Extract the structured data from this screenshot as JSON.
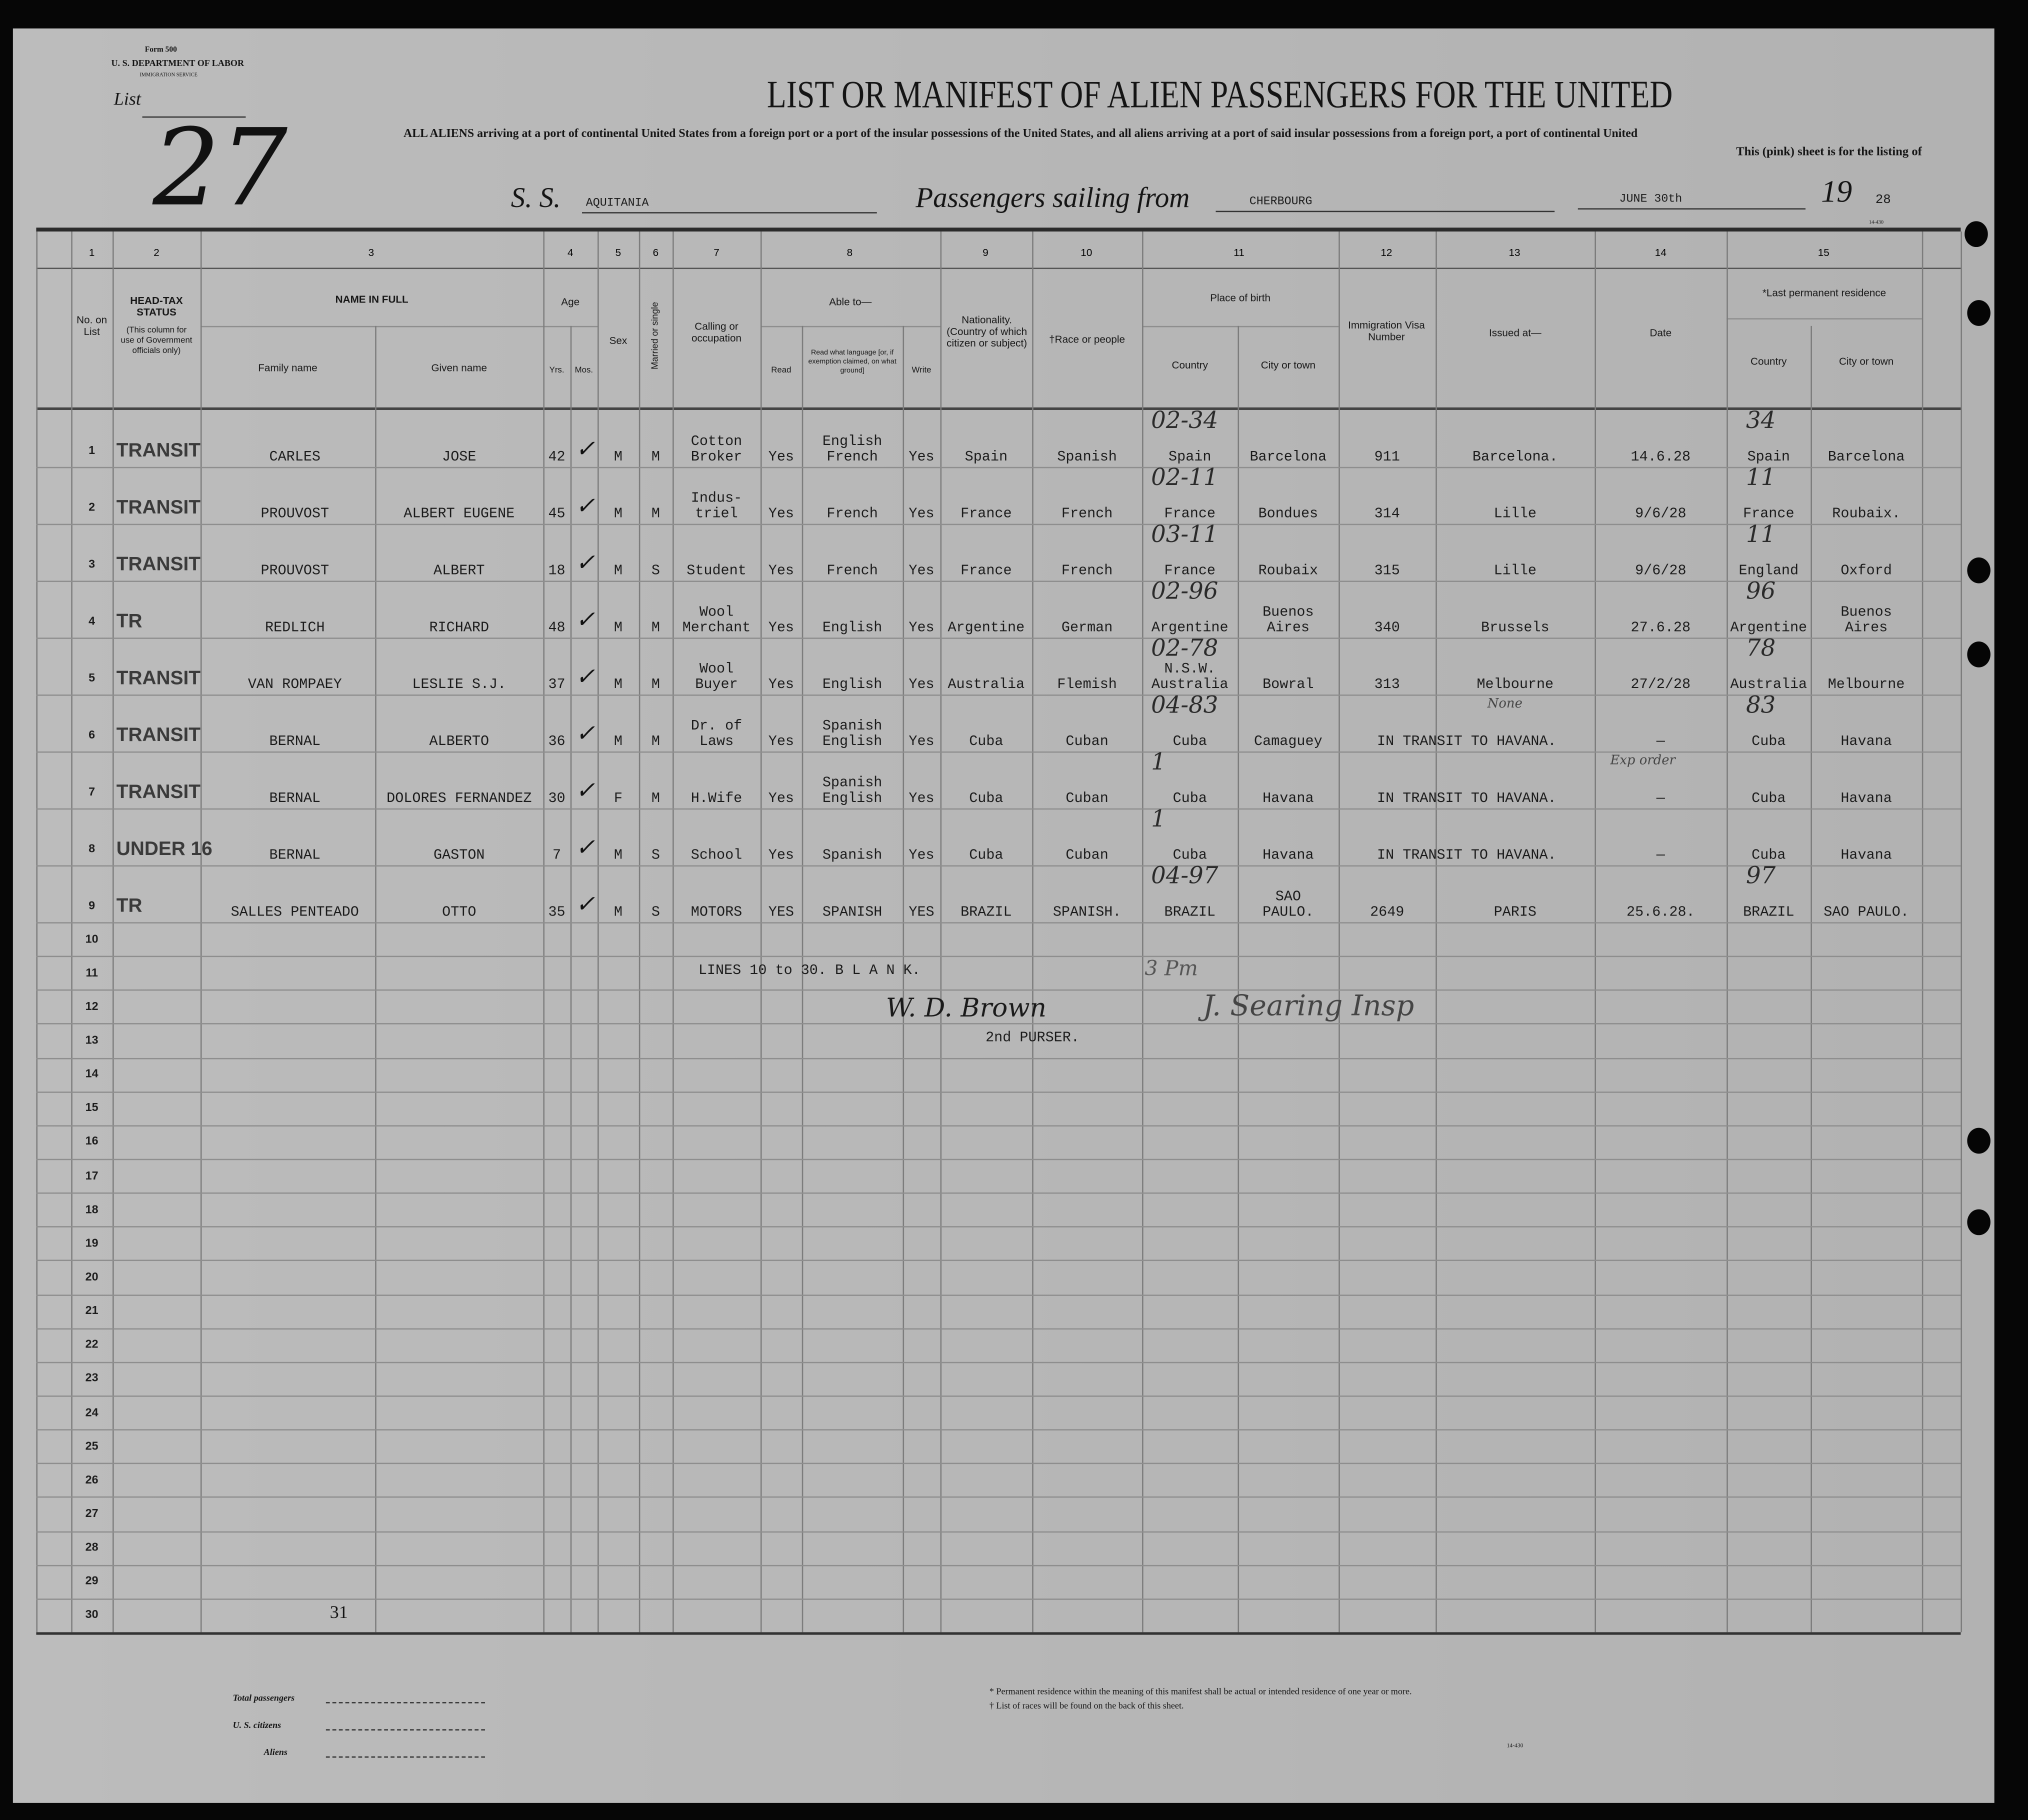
{
  "form": {
    "form_no": "Form 500",
    "department": "U. S. DEPARTMENT OF LABOR",
    "service": "IMMIGRATION SERVICE",
    "list_label": "List",
    "list_number": "27",
    "title": "LIST OR MANIFEST OF ALIEN PASSENGERS FOR THE UNITED",
    "subtitle": "ALL ALIENS arriving at a port of continental United States from a foreign port or a port of the insular possessions of the United States, and all aliens arriving at a port of said insular possessions from a foreign port, a port of continental United",
    "subtitle2": "This (pink) sheet is for the listing of",
    "ss_label": "S. S.",
    "ship": "AQUITANIA",
    "sailing_label": "Passengers sailing from",
    "port": "CHERBOURG",
    "date": "JUNE 30th",
    "year_prefix": "19",
    "year": "28",
    "form_code": "14-430"
  },
  "columns": {
    "numbers": [
      "1",
      "2",
      "3",
      "4",
      "5",
      "6",
      "7",
      "8",
      "9",
      "10",
      "11",
      "12",
      "13",
      "14",
      "15"
    ],
    "no_on_list": "No. on List",
    "head_tax": "HEAD-TAX STATUS",
    "head_tax_note": "(This column for use of Government officials only)",
    "name_in_full": "NAME IN FULL",
    "family_name": "Family name",
    "given_name": "Given name",
    "age": "Age",
    "yrs": "Yrs.",
    "mos": "Mos.",
    "sex": "Sex",
    "married": "Married or single",
    "calling": "Calling or occupation",
    "able_to": "Able to—",
    "read": "Read",
    "read_language": "Read what language [or, if exemption claimed, on what ground]",
    "write": "Write",
    "nationality": "Nationality. (Country of which citizen or subject)",
    "race": "†Race or people",
    "place_of_birth": "Place of birth",
    "country": "Country",
    "city": "City or town",
    "visa": "Immigration Visa Number",
    "issued_at": "Issued at—",
    "date": "Date",
    "last_residence": "*Last permanent residence",
    "res_country": "Country",
    "res_city": "City or town"
  },
  "rows": [
    {
      "no": "1",
      "tax": "TRANSIT",
      "family": "CARLES",
      "given": "JOSE",
      "yrs": "42",
      "sex": "M",
      "ms": "M",
      "calling": "Cotton\nBroker",
      "read": "Yes",
      "lang": "English\nFrench",
      "write": "Yes",
      "nat": "Spain",
      "race": "Spanish",
      "bcountry": "Spain",
      "bcity": "Barcelona",
      "visa": "911",
      "issued": "Barcelona.",
      "vdate": "14.6.28",
      "rcountry": "Spain",
      "rcity": "Barcelona",
      "hand_birth": "02-34",
      "hand_res": "34"
    },
    {
      "no": "2",
      "tax": "TRANSIT",
      "family": "PROUVOST",
      "given": "ALBERT EUGENE",
      "yrs": "45",
      "sex": "M",
      "ms": "M",
      "calling": "Indus-\ntriel",
      "read": "Yes",
      "lang": "French",
      "write": "Yes",
      "nat": "France",
      "race": "French",
      "bcountry": "France",
      "bcity": "Bondues",
      "visa": "314",
      "issued": "Lille",
      "vdate": "9/6/28",
      "rcountry": "France",
      "rcity": "Roubaix.",
      "hand_birth": "02-11",
      "hand_res": "11"
    },
    {
      "no": "3",
      "tax": "TRANSIT",
      "family": "PROUVOST",
      "given": "ALBERT",
      "yrs": "18",
      "sex": "M",
      "ms": "S",
      "calling": "Student",
      "read": "Yes",
      "lang": "French",
      "write": "Yes",
      "nat": "France",
      "race": "French",
      "bcountry": "France",
      "bcity": "Roubaix",
      "visa": "315",
      "issued": "Lille",
      "vdate": "9/6/28",
      "rcountry": "England",
      "rcity": "Oxford",
      "hand_birth": "03-11",
      "hand_res": "11"
    },
    {
      "no": "4",
      "tax": "TR",
      "family": "REDLICH",
      "given": "RICHARD",
      "yrs": "48",
      "sex": "M",
      "ms": "M",
      "calling": "Wool\nMerchant",
      "read": "Yes",
      "lang": "English",
      "write": "Yes",
      "nat": "Argentine",
      "race": "German",
      "bcountry": "Argentine",
      "bcity": "Buenos\nAires",
      "visa": "340",
      "issued": "Brussels",
      "vdate": "27.6.28",
      "rcountry": "Argentine",
      "rcity": "Buenos\nAires",
      "hand_birth": "02-96",
      "hand_res": "96"
    },
    {
      "no": "5",
      "tax": "TRANSIT",
      "family": "VAN ROMPAEY",
      "given": "LESLIE S.J.",
      "yrs": "37",
      "sex": "M",
      "ms": "M",
      "calling": "Wool\nBuyer",
      "read": "Yes",
      "lang": "English",
      "write": "Yes",
      "nat": "Australia",
      "race": "Flemish",
      "bcountry": "N.S.W.\nAustralia",
      "bcity": "Bowral",
      "visa": "313",
      "issued": "Melbourne",
      "vdate": "27/2/28",
      "rcountry": "Australia",
      "rcity": "Melbourne",
      "hand_birth": "02-78",
      "hand_res": "78"
    },
    {
      "no": "6",
      "tax": "TRANSIT",
      "family": "BERNAL",
      "given": "ALBERTO",
      "yrs": "36",
      "sex": "M",
      "ms": "M",
      "calling": "Dr. of\nLaws",
      "read": "Yes",
      "lang": "Spanish\nEnglish",
      "write": "Yes",
      "nat": "Cuba",
      "race": "Cuban",
      "bcountry": "Cuba",
      "bcity": "Camaguey",
      "transit": "IN  TRANSIT  TO HAVANA.",
      "vdate": "—",
      "rcountry": "Cuba",
      "rcity": "Havana",
      "hand_birth": "04-83",
      "hand_res": "83"
    },
    {
      "no": "7",
      "tax": "TRANSIT",
      "family": "BERNAL",
      "given": "DOLORES FERNANDEZ",
      "yrs": "30",
      "sex": "F",
      "ms": "M",
      "calling": "H.Wife",
      "read": "Yes",
      "lang": "Spanish\nEnglish",
      "write": "Yes",
      "nat": "Cuba",
      "race": "Cuban",
      "bcountry": "Cuba",
      "bcity": "Havana",
      "transit": "IN  TRANSIT  TO HAVANA.",
      "vdate": "—",
      "rcountry": "Cuba",
      "rcity": "Havana",
      "hand_birth": "1",
      "hand_res": ""
    },
    {
      "no": "8",
      "tax": "UNDER 16",
      "family": "BERNAL",
      "given": "GASTON",
      "yrs": "7",
      "sex": "M",
      "ms": "S",
      "calling": "School",
      "read": "Yes",
      "lang": "Spanish",
      "write": "Yes",
      "nat": "Cuba",
      "race": "Cuban",
      "bcountry": "Cuba",
      "bcity": "Havana",
      "transit": "IN  TRANSIT  TO HAVANA.",
      "vdate": "—",
      "rcountry": "Cuba",
      "rcity": "Havana",
      "hand_birth": "1",
      "hand_res": ""
    },
    {
      "no": "9",
      "tax": "TR",
      "family": "SALLES PENTEADO",
      "given": "OTTO",
      "yrs": "35",
      "sex": "M",
      "ms": "S",
      "calling": "MOTORS",
      "read": "YES",
      "lang": "SPANISH",
      "write": "YES",
      "nat": "BRAZIL",
      "race": "SPANISH.",
      "bcountry": "BRAZIL",
      "bcity": "SAO\nPAULO.",
      "visa": "2649",
      "issued": "PARIS",
      "vdate": "25.6.28.",
      "rcountry": "BRAZIL",
      "rcity": "SAO PAULO.",
      "hand_birth": "04-97",
      "hand_res": "97"
    }
  ],
  "row_numbers": [
    "1",
    "2",
    "3",
    "4",
    "5",
    "6",
    "7",
    "8",
    "9",
    "10",
    "11",
    "12",
    "13",
    "14",
    "15",
    "16",
    "17",
    "18",
    "19",
    "20",
    "21",
    "22",
    "23",
    "24",
    "25",
    "26",
    "27",
    "28",
    "29",
    "30"
  ],
  "annotations": {
    "blank_note": "LINES 10 to 30. B L A N K.",
    "signature": "W. D. Brown",
    "purser": "2nd PURSER.",
    "time_note": "3 Pm",
    "inspector": "J. Searing Insp",
    "page_count": "31",
    "none_note": "None",
    "order_note": "Exp order"
  },
  "footer": {
    "total_passengers": "Total passengers",
    "us_citizens": "U. S. citizens",
    "aliens": "Aliens",
    "footnote1": "* Permanent residence within the meaning of this manifest shall be actual or intended residence of one year or more.",
    "footnote2": "† List of races will be found on the back of this sheet.",
    "form_code": "14-430"
  }
}
